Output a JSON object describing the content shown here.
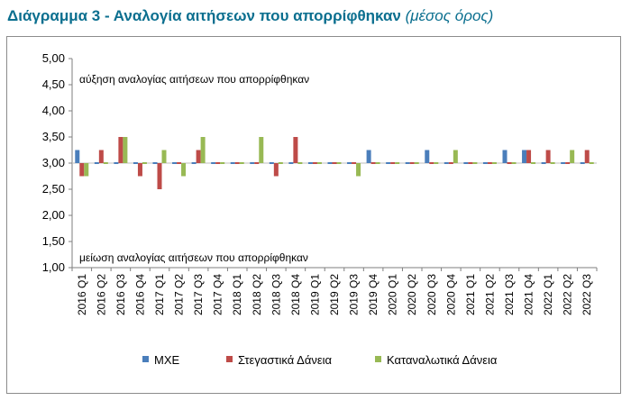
{
  "chart_data": {
    "type": "bar",
    "title": "Διάγραμμα 3 - Αναλογία αιτήσεων που απορρίφθηκαν",
    "subtitle": "(μέσος όρος)",
    "categories": [
      "2016 Q1",
      "2016 Q2",
      "2016 Q3",
      "2016 Q4",
      "2017 Q1",
      "2017 Q2",
      "2017 Q3",
      "2017 Q4",
      "2018 Q1",
      "2018 Q2",
      "2018 Q3",
      "2018 Q4",
      "2019 Q1",
      "2019 Q2",
      "2019 Q3",
      "2019 Q4",
      "2020 Q1",
      "2020 Q2",
      "2020 Q3",
      "2020 Q4",
      "2021 Q1",
      "2021 Q2",
      "2021 Q3",
      "2021 Q4",
      "2022 Q1",
      "2022 Q2",
      "2022 Q3"
    ],
    "series": [
      {
        "name": "ΜΧΕ",
        "color": "#4a7ebb",
        "values": [
          3.25,
          3.0,
          3.0,
          3.0,
          3.0,
          3.0,
          3.0,
          3.0,
          3.0,
          3.0,
          3.0,
          3.0,
          3.0,
          3.0,
          3.0,
          3.25,
          3.0,
          3.0,
          3.25,
          3.0,
          3.0,
          3.0,
          3.25,
          3.25,
          3.0,
          3.0,
          3.0
        ]
      },
      {
        "name": "Στεγαστικά Δάνεια",
        "color": "#be4b48",
        "values": [
          2.75,
          3.25,
          3.5,
          2.75,
          2.5,
          3.0,
          3.25,
          3.0,
          3.0,
          3.0,
          2.75,
          3.5,
          3.0,
          3.0,
          3.0,
          3.0,
          3.0,
          3.0,
          3.0,
          3.0,
          3.0,
          3.0,
          3.0,
          3.25,
          3.25,
          3.0,
          3.25
        ]
      },
      {
        "name": "Καταναλωτικά Δάνεια",
        "color": "#98b954",
        "values": [
          2.75,
          3.0,
          3.5,
          3.0,
          3.25,
          2.75,
          3.5,
          3.0,
          3.0,
          3.5,
          3.0,
          3.0,
          3.0,
          3.0,
          2.75,
          3.0,
          3.0,
          3.0,
          3.0,
          3.25,
          3.0,
          3.0,
          3.0,
          3.0,
          3.0,
          3.25,
          3.0
        ]
      }
    ],
    "baseline": 3.0,
    "ylim": [
      1.0,
      5.0
    ],
    "yticks": [
      "1,00",
      "1,50",
      "2,00",
      "2,50",
      "3,00",
      "3,50",
      "4,00",
      "4,50",
      "5,00"
    ],
    "annotations": {
      "top": "αύξηση αναλογίας αιτήσεων που απορρίφθηκαν",
      "bottom": "μείωση αναλογίας αιτήσεων που απορρίφθηκαν"
    },
    "grid": false,
    "legend": "bottom"
  }
}
